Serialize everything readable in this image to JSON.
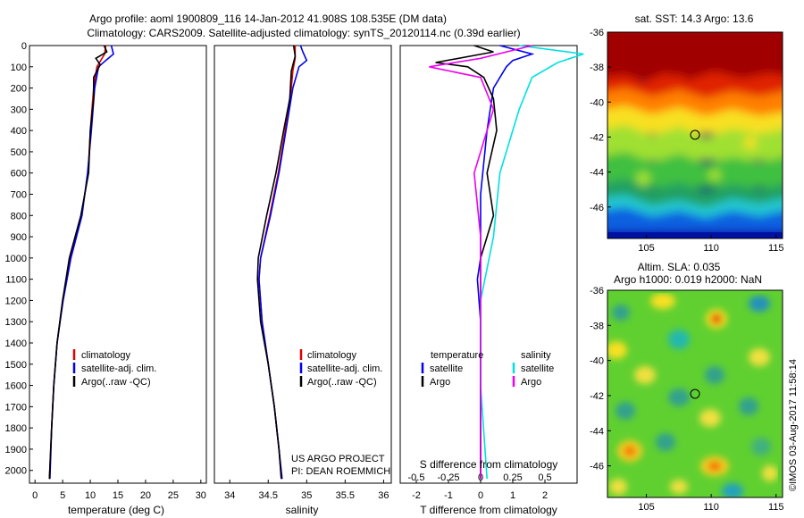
{
  "title": {
    "line1": "Argo profile: aoml 1900809_116 14-Jan-2012 41.908S 108.535E (DM data)",
    "line2": "Climatology: CARS2009. Satellite-adjusted climatology: synTS_20120114.nc (0.39d earlier)"
  },
  "colors": {
    "climatology": "#dd0000",
    "satellite": "#0000ee",
    "argo": "#000000",
    "satellite_salinity": "#00e0e0",
    "argo_salinity": "#ee00ee"
  },
  "chart_data": [
    {
      "type": "line",
      "panel": "temperature",
      "xlabel": "temperature (deg C)",
      "ylabel": "",
      "xlim": [
        -1,
        31
      ],
      "ylim": [
        2060,
        0
      ],
      "xticks": [
        0,
        5,
        10,
        15,
        20,
        25,
        30
      ],
      "yticks": [
        0,
        100,
        200,
        300,
        400,
        500,
        600,
        700,
        800,
        900,
        1000,
        1100,
        1200,
        1300,
        1400,
        1500,
        1600,
        1700,
        1800,
        1900,
        2000
      ],
      "legend": [
        "climatology",
        "satellite-adj. clim.",
        "Argo(..raw -QC)"
      ],
      "legend_position": "bottom-right",
      "series": [
        {
          "name": "climatology",
          "color": "#dd0000",
          "points": [
            [
              12.8,
              0
            ],
            [
              12.6,
              40
            ],
            [
              11.2,
              100
            ],
            [
              10.6,
              200
            ],
            [
              10.0,
              400
            ],
            [
              9.6,
              600
            ],
            [
              8.4,
              800
            ],
            [
              6.4,
              1000
            ],
            [
              5.0,
              1200
            ],
            [
              4.0,
              1400
            ],
            [
              3.4,
              1600
            ],
            [
              3.0,
              1800
            ],
            [
              2.6,
              2040
            ]
          ]
        },
        {
          "name": "satellite-adj. clim.",
          "color": "#0000ee",
          "points": [
            [
              13.8,
              0
            ],
            [
              14.2,
              40
            ],
            [
              12.8,
              70
            ],
            [
              11.5,
              100
            ],
            [
              10.8,
              200
            ],
            [
              10.2,
              400
            ],
            [
              9.5,
              600
            ],
            [
              8.5,
              800
            ],
            [
              6.5,
              1000
            ],
            [
              5.1,
              1200
            ],
            [
              4.0,
              1400
            ],
            [
              3.4,
              1600
            ],
            [
              3.0,
              1800
            ],
            [
              2.7,
              2040
            ]
          ]
        },
        {
          "name": "Argo(..raw -QC)",
          "color": "#000000",
          "points": [
            [
              12.5,
              0
            ],
            [
              13.0,
              30
            ],
            [
              11.0,
              60
            ],
            [
              11.8,
              90
            ],
            [
              10.6,
              150
            ],
            [
              10.6,
              250
            ],
            [
              10.0,
              400
            ],
            [
              9.7,
              600
            ],
            [
              8.3,
              800
            ],
            [
              6.2,
              1000
            ],
            [
              5.0,
              1200
            ],
            [
              4.0,
              1400
            ],
            [
              3.4,
              1600
            ],
            [
              3.0,
              1800
            ],
            [
              2.6,
              2040
            ]
          ]
        }
      ]
    },
    {
      "type": "line",
      "panel": "salinity",
      "xlabel": "salinity",
      "xlim": [
        33.8,
        36.1
      ],
      "ylim": [
        2060,
        0
      ],
      "xticks": [
        34,
        34.5,
        35,
        35.5,
        36
      ],
      "xtick_labels": [
        "34",
        "34.5",
        "35",
        "35.5",
        "36"
      ],
      "legend": [
        "climatology",
        "satellite-adj. clim.",
        "Argo(..raw -QC)"
      ],
      "legend_position": "bottom-right",
      "annotation": [
        "US ARGO PROJECT",
        "PI: DEAN ROEMMICH"
      ],
      "series": [
        {
          "name": "climatology",
          "color": "#dd0000",
          "points": [
            [
              34.85,
              0
            ],
            [
              34.85,
              60
            ],
            [
              34.82,
              120
            ],
            [
              34.8,
              200
            ],
            [
              34.72,
              400
            ],
            [
              34.63,
              600
            ],
            [
              34.52,
              800
            ],
            [
              34.4,
              1000
            ],
            [
              34.38,
              1100
            ],
            [
              34.42,
              1300
            ],
            [
              34.5,
              1500
            ],
            [
              34.58,
              1700
            ],
            [
              34.64,
              1900
            ],
            [
              34.67,
              2040
            ]
          ]
        },
        {
          "name": "satellite-adj. clim.",
          "color": "#0000ee",
          "points": [
            [
              34.92,
              0
            ],
            [
              34.95,
              30
            ],
            [
              35.0,
              70
            ],
            [
              34.9,
              100
            ],
            [
              34.82,
              200
            ],
            [
              34.73,
              400
            ],
            [
              34.64,
              600
            ],
            [
              34.53,
              800
            ],
            [
              34.4,
              1000
            ],
            [
              34.38,
              1100
            ],
            [
              34.42,
              1300
            ],
            [
              34.5,
              1500
            ],
            [
              34.58,
              1700
            ],
            [
              34.64,
              1900
            ],
            [
              34.68,
              2040
            ]
          ]
        },
        {
          "name": "Argo(..raw -QC)",
          "color": "#000000",
          "points": [
            [
              34.83,
              0
            ],
            [
              34.85,
              50
            ],
            [
              34.8,
              120
            ],
            [
              34.78,
              250
            ],
            [
              34.7,
              400
            ],
            [
              34.6,
              600
            ],
            [
              34.48,
              800
            ],
            [
              34.37,
              1000
            ],
            [
              34.36,
              1100
            ],
            [
              34.4,
              1300
            ],
            [
              34.5,
              1500
            ],
            [
              34.58,
              1700
            ],
            [
              34.64,
              1900
            ],
            [
              34.67,
              2040
            ]
          ]
        }
      ]
    },
    {
      "type": "line",
      "panel": "difference",
      "xlabel": "T difference from climatology",
      "xlabel_top": "S difference from climatology",
      "xlim": [
        -2.5,
        3
      ],
      "ylim": [
        2060,
        0
      ],
      "xticks": [
        -2,
        -1,
        0,
        1,
        2
      ],
      "xtick_labels": [
        "-2",
        "-1",
        "0",
        "1",
        "2"
      ],
      "xticks_top": [
        "-0.5",
        "-0.25",
        "0",
        "0.25",
        "0.5"
      ],
      "legend": {
        "temperature": [
          "satellite",
          "Argo"
        ],
        "salinity": [
          "satellite",
          "Argo"
        ]
      },
      "legend_headers": [
        "temperature",
        "salinity"
      ],
      "legend_position": "bottom",
      "series": [
        {
          "name": "T satellite",
          "color": "#0000ee",
          "points": [
            [
              0.6,
              0
            ],
            [
              1.6,
              40
            ],
            [
              1.0,
              70
            ],
            [
              0.8,
              100
            ],
            [
              0.4,
              200
            ],
            [
              0.2,
              400
            ],
            [
              0.0,
              700
            ],
            [
              0.0,
              1000
            ],
            [
              -0.1,
              1100
            ],
            [
              0.0,
              1300
            ],
            [
              0.0,
              1600
            ],
            [
              0.0,
              2040
            ]
          ]
        },
        {
          "name": "T Argo",
          "color": "#000000",
          "points": [
            [
              -0.2,
              0
            ],
            [
              0.4,
              30
            ],
            [
              -1.4,
              80
            ],
            [
              -0.4,
              100
            ],
            [
              0.1,
              150
            ],
            [
              0.4,
              250
            ],
            [
              0.5,
              400
            ],
            [
              0.2,
              600
            ],
            [
              0.4,
              800
            ],
            [
              0.0,
              1000
            ],
            [
              0.0,
              1300
            ],
            [
              0.0,
              1600
            ],
            [
              0.0,
              2040
            ]
          ]
        },
        {
          "name": "S satellite",
          "color": "#00e0e0",
          "points": [
            [
              0.3,
              0
            ],
            [
              0.8,
              40
            ],
            [
              0.6,
              80
            ],
            [
              0.4,
              150
            ],
            [
              0.3,
              300
            ],
            [
              0.15,
              600
            ],
            [
              0.1,
              900
            ],
            [
              0.0,
              1200
            ],
            [
              0.0,
              1600
            ],
            [
              0.05,
              2040
            ]
          ]
        },
        {
          "name": "S Argo",
          "color": "#ee00ee",
          "points": [
            [
              0.4,
              0
            ],
            [
              0.0,
              60
            ],
            [
              -0.4,
              100
            ],
            [
              0.0,
              150
            ],
            [
              0.1,
              300
            ],
            [
              -0.05,
              600
            ],
            [
              0.0,
              900
            ],
            [
              0.0,
              1200
            ],
            [
              0.0,
              1600
            ],
            [
              0.0,
              2040
            ]
          ]
        }
      ]
    },
    {
      "type": "heatmap",
      "panel": "sst-map",
      "title": "sat. SST: 14.3 Argo: 13.6",
      "xlim": [
        102,
        115.5
      ],
      "ylim": [
        -47.8,
        -36
      ],
      "xticks": [
        105,
        110,
        115
      ],
      "yticks": [
        -36,
        -38,
        -40,
        -42,
        -44,
        -46
      ],
      "marker": {
        "lon": 108.535,
        "lat": -41.908
      }
    },
    {
      "type": "heatmap",
      "panel": "sla-map",
      "title_line1": "Altim. SLA: 0.035",
      "title_line2": "Argo h1000: 0.019 h2000: NaN",
      "xlim": [
        102,
        115.5
      ],
      "ylim": [
        -47.8,
        -36
      ],
      "xticks": [
        105,
        110,
        115
      ],
      "yticks": [
        -36,
        -38,
        -40,
        -42,
        -44,
        -46
      ],
      "marker": {
        "lon": 108.535,
        "lat": -41.908
      }
    }
  ],
  "footer_stamp": "©IMOS 03-Aug-2017 11:58:14"
}
